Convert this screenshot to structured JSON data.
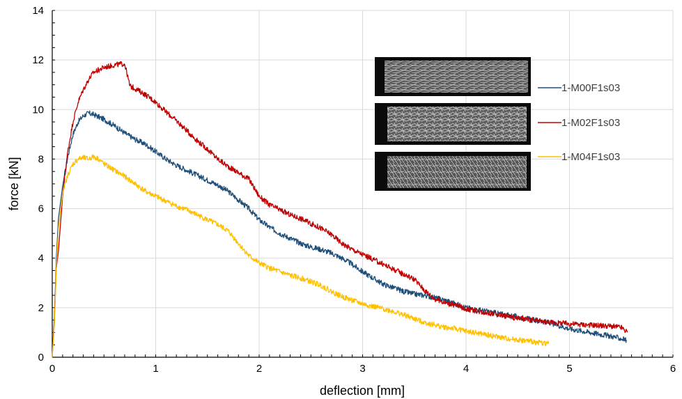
{
  "chart_data": {
    "type": "line",
    "title": "",
    "xlabel": "deflection [mm]",
    "ylabel": "force  [kN]",
    "xlim": [
      0,
      6
    ],
    "ylim": [
      0,
      14
    ],
    "x_ticks": [
      0,
      1,
      2,
      3,
      4,
      5,
      6
    ],
    "y_ticks": [
      0,
      2,
      4,
      6,
      8,
      10,
      12,
      14
    ],
    "grid": true,
    "legend_position": "right",
    "series": [
      {
        "name": "1-M00F1s03",
        "color": "#1f4e79",
        "points": [
          [
            0,
            0
          ],
          [
            0.02,
            1.6
          ],
          [
            0.04,
            4.0
          ],
          [
            0.06,
            5.6
          ],
          [
            0.1,
            6.9
          ],
          [
            0.15,
            8.1
          ],
          [
            0.2,
            9.0
          ],
          [
            0.25,
            9.5
          ],
          [
            0.3,
            9.75
          ],
          [
            0.35,
            9.85
          ],
          [
            0.4,
            9.8
          ],
          [
            0.5,
            9.6
          ],
          [
            0.6,
            9.35
          ],
          [
            0.7,
            9.05
          ],
          [
            0.8,
            8.8
          ],
          [
            0.9,
            8.6
          ],
          [
            1.0,
            8.3
          ],
          [
            1.1,
            8.0
          ],
          [
            1.2,
            7.75
          ],
          [
            1.3,
            7.55
          ],
          [
            1.4,
            7.35
          ],
          [
            1.5,
            7.15
          ],
          [
            1.6,
            6.95
          ],
          [
            1.7,
            6.7
          ],
          [
            1.8,
            6.35
          ],
          [
            1.9,
            6.0
          ],
          [
            2.0,
            5.55
          ],
          [
            2.1,
            5.25
          ],
          [
            2.2,
            5.0
          ],
          [
            2.3,
            4.8
          ],
          [
            2.4,
            4.6
          ],
          [
            2.5,
            4.45
          ],
          [
            2.6,
            4.35
          ],
          [
            2.7,
            4.2
          ],
          [
            2.8,
            4.0
          ],
          [
            2.9,
            3.75
          ],
          [
            3.0,
            3.45
          ],
          [
            3.1,
            3.2
          ],
          [
            3.2,
            2.95
          ],
          [
            3.3,
            2.8
          ],
          [
            3.4,
            2.65
          ],
          [
            3.5,
            2.55
          ],
          [
            3.6,
            2.5
          ],
          [
            3.7,
            2.4
          ],
          [
            3.8,
            2.3
          ],
          [
            3.9,
            2.15
          ],
          [
            4.0,
            2.0
          ],
          [
            4.2,
            1.85
          ],
          [
            4.4,
            1.7
          ],
          [
            4.6,
            1.55
          ],
          [
            4.8,
            1.4
          ],
          [
            5.0,
            1.15
          ],
          [
            5.2,
            1.0
          ],
          [
            5.4,
            0.85
          ],
          [
            5.55,
            0.7
          ]
        ]
      },
      {
        "name": "1-M02F1s03",
        "color": "#c00000",
        "points": [
          [
            0,
            0
          ],
          [
            0.02,
            1.5
          ],
          [
            0.04,
            3.6
          ],
          [
            0.06,
            4.3
          ],
          [
            0.1,
            6.5
          ],
          [
            0.15,
            8.3
          ],
          [
            0.2,
            9.5
          ],
          [
            0.25,
            10.3
          ],
          [
            0.3,
            10.8
          ],
          [
            0.35,
            11.2
          ],
          [
            0.4,
            11.5
          ],
          [
            0.5,
            11.7
          ],
          [
            0.6,
            11.8
          ],
          [
            0.7,
            11.85
          ],
          [
            0.72,
            11.5
          ],
          [
            0.75,
            10.95
          ],
          [
            0.8,
            10.85
          ],
          [
            0.9,
            10.6
          ],
          [
            1.0,
            10.3
          ],
          [
            1.1,
            9.9
          ],
          [
            1.2,
            9.55
          ],
          [
            1.3,
            9.15
          ],
          [
            1.4,
            8.75
          ],
          [
            1.5,
            8.4
          ],
          [
            1.6,
            8.0
          ],
          [
            1.7,
            7.7
          ],
          [
            1.8,
            7.45
          ],
          [
            1.9,
            7.2
          ],
          [
            2.0,
            6.5
          ],
          [
            2.1,
            6.15
          ],
          [
            2.2,
            5.95
          ],
          [
            2.3,
            5.75
          ],
          [
            2.4,
            5.6
          ],
          [
            2.5,
            5.4
          ],
          [
            2.6,
            5.2
          ],
          [
            2.7,
            4.95
          ],
          [
            2.8,
            4.6
          ],
          [
            2.9,
            4.35
          ],
          [
            3.0,
            4.15
          ],
          [
            3.1,
            3.95
          ],
          [
            3.2,
            3.75
          ],
          [
            3.3,
            3.55
          ],
          [
            3.4,
            3.35
          ],
          [
            3.5,
            3.15
          ],
          [
            3.6,
            2.7
          ],
          [
            3.7,
            2.35
          ],
          [
            3.8,
            2.2
          ],
          [
            3.9,
            2.1
          ],
          [
            4.0,
            1.95
          ],
          [
            4.2,
            1.8
          ],
          [
            4.4,
            1.65
          ],
          [
            4.6,
            1.5
          ],
          [
            4.8,
            1.42
          ],
          [
            5.0,
            1.35
          ],
          [
            5.2,
            1.3
          ],
          [
            5.4,
            1.25
          ],
          [
            5.5,
            1.2
          ],
          [
            5.56,
            1.0
          ]
        ]
      },
      {
        "name": "1-M04F1s03",
        "color": "#ffc000",
        "points": [
          [
            0,
            0
          ],
          [
            0.02,
            1.3
          ],
          [
            0.04,
            3.6
          ],
          [
            0.06,
            5.2
          ],
          [
            0.1,
            6.6
          ],
          [
            0.15,
            7.35
          ],
          [
            0.2,
            7.8
          ],
          [
            0.25,
            8.0
          ],
          [
            0.3,
            8.05
          ],
          [
            0.35,
            8.0
          ],
          [
            0.4,
            8.1
          ],
          [
            0.45,
            8.0
          ],
          [
            0.5,
            7.8
          ],
          [
            0.6,
            7.55
          ],
          [
            0.7,
            7.3
          ],
          [
            0.8,
            7.0
          ],
          [
            0.9,
            6.7
          ],
          [
            1.0,
            6.5
          ],
          [
            1.1,
            6.3
          ],
          [
            1.2,
            6.1
          ],
          [
            1.3,
            5.95
          ],
          [
            1.4,
            5.75
          ],
          [
            1.5,
            5.55
          ],
          [
            1.6,
            5.35
          ],
          [
            1.7,
            5.1
          ],
          [
            1.8,
            4.6
          ],
          [
            1.9,
            4.1
          ],
          [
            2.0,
            3.8
          ],
          [
            2.1,
            3.6
          ],
          [
            2.2,
            3.45
          ],
          [
            2.3,
            3.3
          ],
          [
            2.4,
            3.2
          ],
          [
            2.5,
            3.05
          ],
          [
            2.6,
            2.9
          ],
          [
            2.7,
            2.65
          ],
          [
            2.8,
            2.45
          ],
          [
            2.9,
            2.3
          ],
          [
            3.0,
            2.15
          ],
          [
            3.1,
            2.05
          ],
          [
            3.2,
            1.95
          ],
          [
            3.3,
            1.85
          ],
          [
            3.4,
            1.7
          ],
          [
            3.5,
            1.55
          ],
          [
            3.6,
            1.4
          ],
          [
            3.7,
            1.3
          ],
          [
            3.8,
            1.2
          ],
          [
            3.9,
            1.15
          ],
          [
            4.0,
            1.05
          ],
          [
            4.2,
            0.9
          ],
          [
            4.4,
            0.75
          ],
          [
            4.6,
            0.65
          ],
          [
            4.8,
            0.55
          ]
        ]
      }
    ]
  }
}
